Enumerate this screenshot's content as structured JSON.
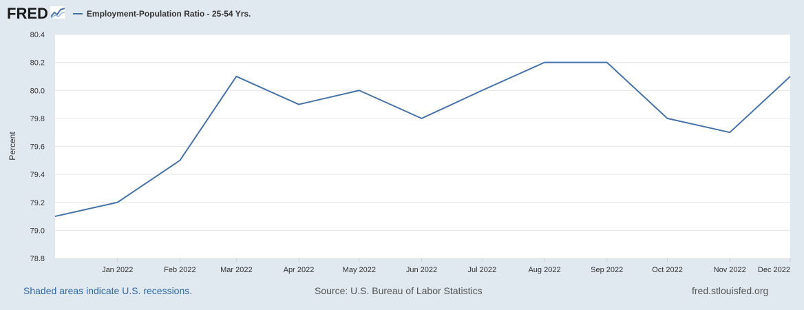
{
  "header": {
    "logo": "FRED",
    "logo_icon": "fred-chart-line-icon"
  },
  "colors": {
    "background": "#e1e9f0",
    "plot_background": "#ffffff",
    "series_line": "#4572a7",
    "gridline": "#e6e6e6",
    "footer_link": "#2e67a8"
  },
  "chart_data": {
    "type": "line",
    "legend": "Employment-Population Ratio - 25-54 Yrs.",
    "legend_position": "top-left",
    "ylabel": "Percent",
    "xlabel": "",
    "ylim": [
      78.8,
      80.4
    ],
    "xlim": [
      "2021-12-01",
      "2022-12-01"
    ],
    "y_ticks": [
      "80.4",
      "80.2",
      "80.0",
      "79.8",
      "79.6",
      "79.4",
      "79.2",
      "79.0",
      "78.8"
    ],
    "x_ticks": [
      "Jan 2022",
      "Feb 2022",
      "Mar 2022",
      "Apr 2022",
      "May 2022",
      "Jun 2022",
      "Jul 2022",
      "Aug 2022",
      "Sep 2022",
      "Oct 2022",
      "Nov 2022",
      "Dec 2022"
    ],
    "grid": true,
    "series": [
      {
        "name": "Employment-Population Ratio - 25-54 Yrs.",
        "x": [
          "2021-12-01",
          "2022-01-01",
          "2022-02-01",
          "2022-03-01",
          "2022-04-01",
          "2022-05-01",
          "2022-06-01",
          "2022-07-01",
          "2022-08-01",
          "2022-09-01",
          "2022-10-01",
          "2022-11-01",
          "2022-12-01"
        ],
        "values": [
          79.1,
          79.2,
          79.5,
          80.1,
          79.9,
          80.0,
          79.8,
          80.0,
          80.2,
          80.2,
          79.8,
          79.7,
          80.1
        ]
      }
    ]
  },
  "footer": {
    "recessions_note": "Shaded areas indicate U.S. recessions.",
    "source": "Source: U.S. Bureau of Labor Statistics",
    "site": "fred.stlouisfed.org"
  }
}
